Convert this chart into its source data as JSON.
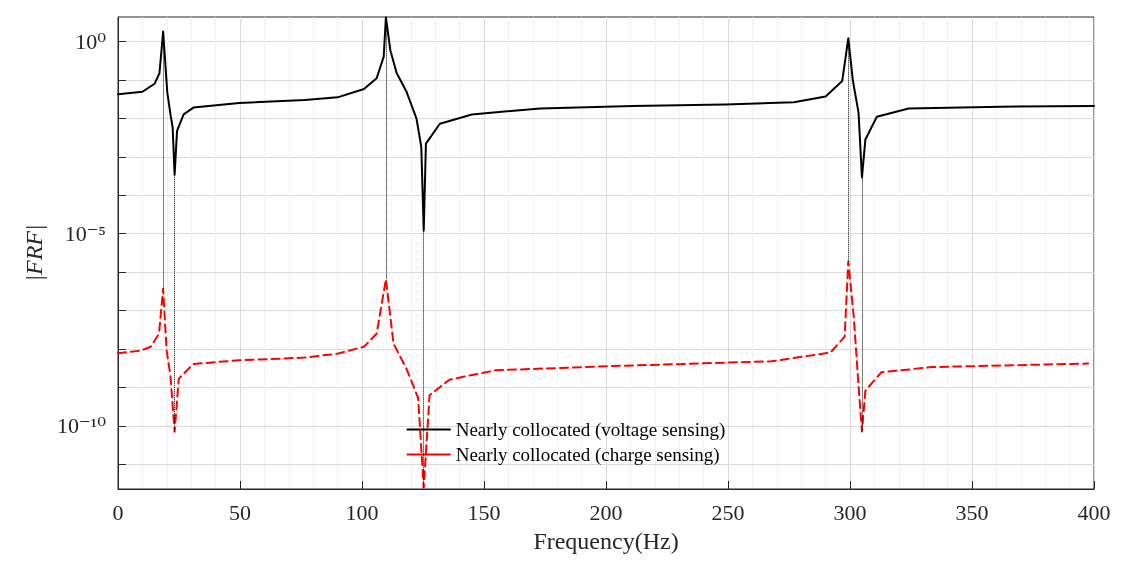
{
  "chart_data": {
    "type": "line",
    "xlabel": "Frequency(Hz)",
    "ylabel": "|FRF|",
    "log": "y",
    "grid": true,
    "legend": "bottom",
    "line_style": "solid",
    "marker": "none",
    "xlim": [
      0,
      400
    ],
    "xticks": [
      0,
      50,
      100,
      150,
      200,
      250,
      300,
      350,
      400
    ],
    "ylim": [
      2.3e-12,
      4.3
    ],
    "yticks": [
      {
        "value": 1e-11,
        "label": null
      },
      {
        "value": 1e-10,
        "label": "10⁻¹⁰"
      },
      {
        "value": 1e-09,
        "label": null
      },
      {
        "value": 1e-08,
        "label": null
      },
      {
        "value": 1e-07,
        "label": null
      },
      {
        "value": 1e-06,
        "label": null
      },
      {
        "value": 1e-05,
        "label": "10⁻⁵"
      },
      {
        "value": 0.0001,
        "label": null
      },
      {
        "value": 0.001,
        "label": null
      },
      {
        "value": 0.01,
        "label": null
      },
      {
        "value": 0.1,
        "label": null
      },
      {
        "value": 1,
        "label": "10⁰"
      }
    ],
    "ref_lines": [
      {
        "axis": "x",
        "value": 18.5,
        "color": "#000000",
        "line_style": "dotted"
      },
      {
        "axis": "x",
        "value": 23.2,
        "color": "#000000",
        "line_style": "dotted"
      },
      {
        "axis": "x",
        "value": 109.8,
        "color": "#000000",
        "line_style": "dotted"
      },
      {
        "axis": "x",
        "value": 125.3,
        "color": "#000000",
        "line_style": "dotted"
      },
      {
        "axis": "x",
        "value": 299.3,
        "color": "#000000",
        "line_style": "dotted"
      },
      {
        "axis": "x",
        "value": 304.9,
        "color": "#000000",
        "line_style": "dotted"
      }
    ],
    "series": [
      {
        "name": "Nearly collocated (voltage sensing)",
        "color": "#000000",
        "x": [
          0,
          10,
          15,
          17,
          18.5,
          20.2,
          21.5,
          22.4,
          23.2,
          24.2,
          26.9,
          30.9,
          49.7,
          76.6,
          90,
          100.8,
          106,
          108.9,
          109.8,
          111.6,
          114.2,
          118.3,
          122.3,
          124.3,
          125.3,
          126.2,
          131.9,
          145,
          173,
          211,
          249,
          277,
          290,
          296.8,
          299.3,
          301.2,
          303.5,
          304.9,
          306.3,
          311,
          324,
          361.7,
          400
        ],
        "values": [
          0.042,
          0.049,
          0.079,
          0.15,
          1.8,
          0.047,
          0.0126,
          0.0058,
          0.00034,
          0.0047,
          0.0126,
          0.019,
          0.025,
          0.03,
          0.035,
          0.058,
          0.11,
          0.4,
          4.2,
          0.59,
          0.15,
          0.048,
          0.01,
          0.0018,
          1.2e-05,
          0.0022,
          0.0072,
          0.0126,
          0.018,
          0.021,
          0.023,
          0.026,
          0.037,
          0.093,
          1.2,
          0.093,
          0.014,
          0.00029,
          0.0028,
          0.011,
          0.018,
          0.02,
          0.021
        ]
      },
      {
        "name": "Nearly collocated (charge sensing)",
        "color": "#ff0000",
        "line_style": "dashed",
        "x": [
          0,
          9.4,
          13.4,
          16.8,
          18.5,
          19.9,
          21.5,
          23.2,
          24.9,
          30.9,
          49.7,
          76.6,
          90,
          100.8,
          106,
          109.8,
          112.9,
          118.3,
          123,
          125.3,
          127.7,
          135.8,
          154.6,
          201.6,
          267.7,
          292,
          297.8,
          299.3,
          301.6,
          303.5,
          304.9,
          306.3,
          312.9,
          333.6,
          397.6
        ],
        "values": [
          7.8e-09,
          9.1e-09,
          1.15e-08,
          2.5e-08,
          3.7e-07,
          9.5e-09,
          2e-09,
          7.1e-11,
          1.7e-09,
          4.1e-09,
          5.1e-09,
          6e-09,
          7.6e-09,
          1.15e-08,
          2.5e-08,
          6.6e-07,
          1.4e-08,
          3e-09,
          5.4e-10,
          2.5e-12,
          6.3e-10,
          1.6e-09,
          2.8e-09,
          3.6e-09,
          4.8e-09,
          8.1e-09,
          2.1e-08,
          1.9e-06,
          6.3e-08,
          1.1e-09,
          7.2e-11,
          8.3e-10,
          2.5e-09,
          3.4e-09,
          4.2e-09
        ]
      }
    ]
  }
}
